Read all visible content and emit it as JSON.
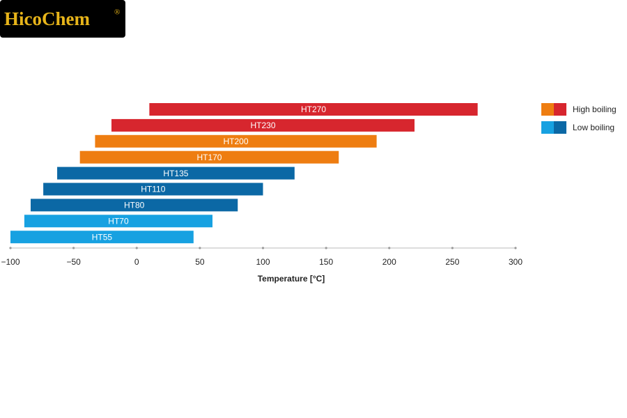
{
  "logo": {
    "name": "HicoChem",
    "mark": "®"
  },
  "chart_data": {
    "type": "range_bar",
    "orientation": "horizontal",
    "x_label": "Temperature [°C]",
    "categories": [
      "HT270",
      "HT230",
      "HT200",
      "HT170",
      "HT135",
      "HT110",
      "HT80",
      "HT70",
      "HT55"
    ],
    "starts": [
      10,
      -20,
      -33,
      -45,
      -63,
      -74,
      -84,
      -89,
      -100
    ],
    "ends": [
      270,
      220,
      190,
      160,
      125,
      100,
      80,
      60,
      45
    ],
    "colors": [
      "#d7262e",
      "#d7262e",
      "#ee7d11",
      "#ee7d11",
      "#0b68a5",
      "#0b68a5",
      "#0b68a5",
      "#17a1e1",
      "#17a1e1"
    ],
    "legend": [
      {
        "name": "High boiling",
        "colors": [
          "#ee7d11",
          "#d7262e"
        ]
      },
      {
        "name": "Low boiling",
        "colors": [
          "#17a1e1",
          "#0b68a5"
        ]
      }
    ],
    "xlim": [
      -100,
      300
    ],
    "xticks": [
      {
        "value": -100,
        "label": "−100"
      },
      {
        "value": -50,
        "label": "−50"
      },
      0,
      50,
      100,
      150,
      200,
      250,
      300
    ]
  }
}
